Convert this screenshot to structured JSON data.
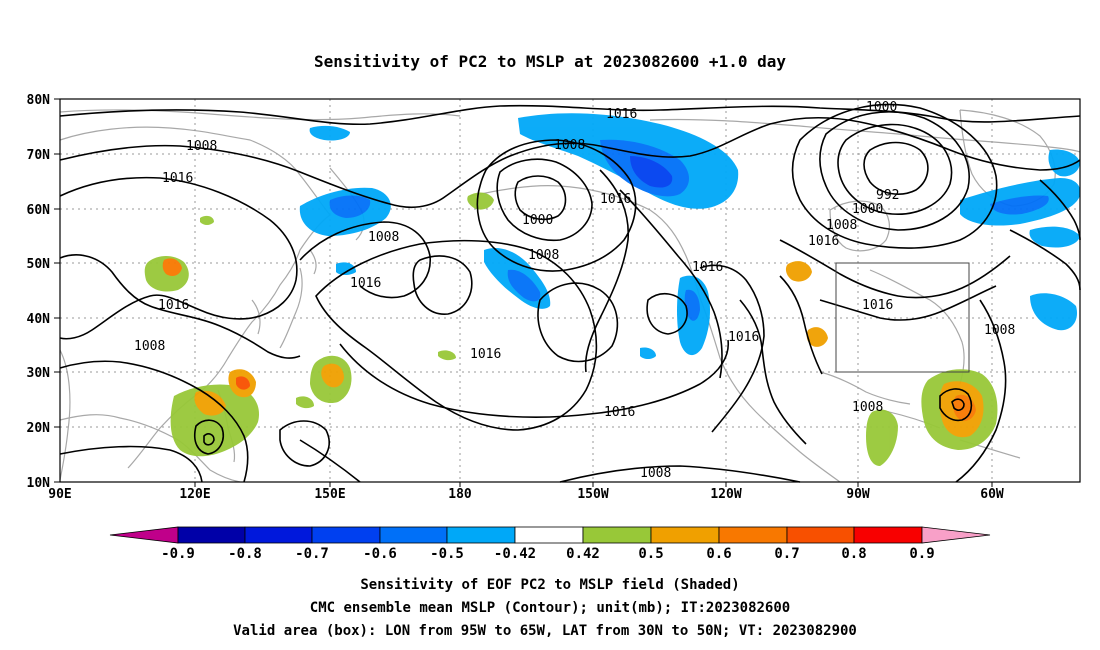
{
  "title": "Sensitivity of PC2 to MSLP at 2023082600 +1.0 day",
  "lat_labels": [
    "80N",
    "70N",
    "60N",
    "50N",
    "40N",
    "30N",
    "20N",
    "10N"
  ],
  "lon_labels": [
    "90E",
    "120E",
    "150E",
    "180",
    "150W",
    "120W",
    "90W",
    "60W"
  ],
  "contour_labels": [
    "1016",
    "1000",
    "1008",
    "1008",
    "992",
    "1000",
    "1016",
    "1008",
    "1008",
    "1000",
    "1016",
    "1008",
    "1016",
    "1016",
    "1016",
    "1016",
    "1008",
    "1016",
    "1016",
    "1008",
    "1016",
    "1008",
    "1016",
    "1008",
    "1008"
  ],
  "colorbar": {
    "labels": [
      "-0.9",
      "-0.8",
      "-0.7",
      "-0.6",
      "-0.5",
      "-0.42",
      "0.42",
      "0.5",
      "0.6",
      "0.7",
      "0.8",
      "0.9"
    ],
    "colors": {
      "below_min": "#c0008a",
      "neg_09": "#0000a8",
      "neg_08": "#0018dc",
      "neg_07": "#0040f0",
      "neg_06": "#0070f8",
      "neg_05": "#00a8f8",
      "neg_042": "#00d0f8",
      "neutral": "#ffffff",
      "pos_042": "#98c838",
      "pos_05": "#f0a000",
      "pos_06": "#f87800",
      "pos_07": "#f85000",
      "pos_08": "#f80000",
      "above_max": "#f8a0c8"
    }
  },
  "caption": {
    "line1": "Sensitivity of EOF PC2 to MSLP field (Shaded)",
    "line2": "CMC ensemble mean MSLP (Contour); unit(mb); IT:2023082600",
    "line3": "Valid area (box): LON from 95W to 65W, LAT from 30N to 50N; VT: 2023082900"
  },
  "colors": {
    "contour": "#000000",
    "coastline": "#a8a8a8",
    "grid": "#999999",
    "valid_box": "#444444"
  }
}
